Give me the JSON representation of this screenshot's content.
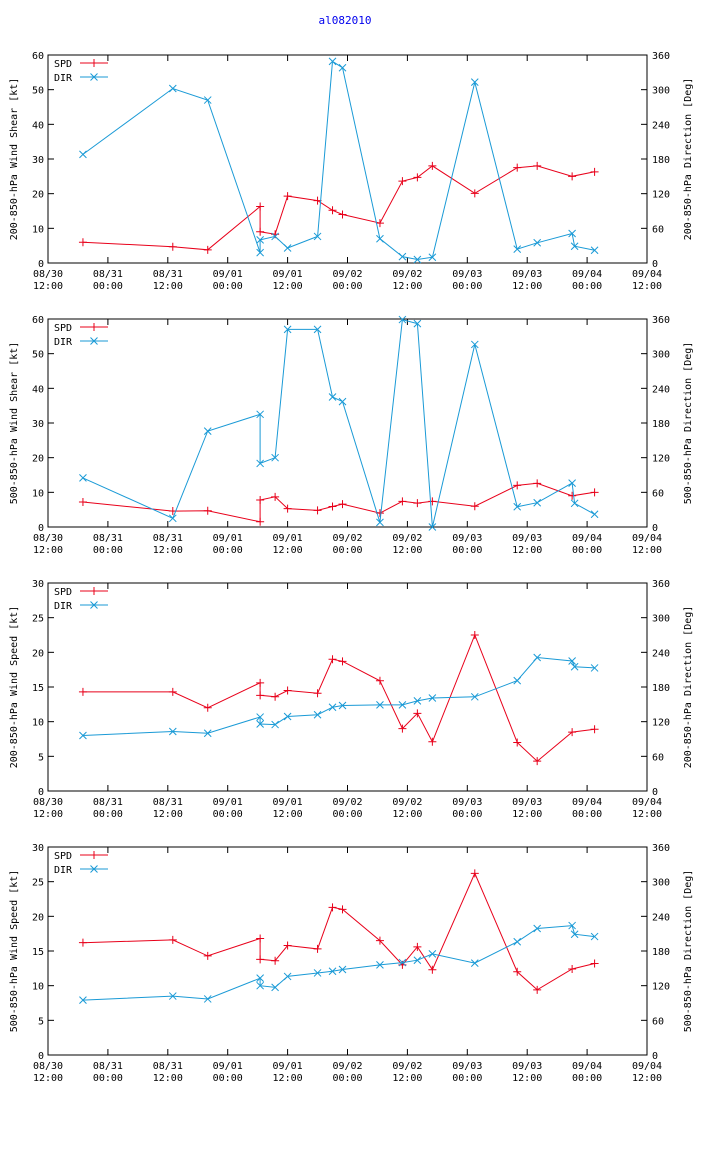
{
  "title": "al082010",
  "colors": {
    "spd": "#e8001a",
    "dir": "#1a9ad6",
    "title": "#0000ee",
    "axis": "#000000"
  },
  "x_ticks": [
    {
      "t": 0,
      "date": "08/30",
      "time": "12:00"
    },
    {
      "t": 12,
      "date": "08/31",
      "time": "00:00"
    },
    {
      "t": 24,
      "date": "08/31",
      "time": "12:00"
    },
    {
      "t": 36,
      "date": "09/01",
      "time": "00:00"
    },
    {
      "t": 48,
      "date": "09/01",
      "time": "12:00"
    },
    {
      "t": 60,
      "date": "09/02",
      "time": "00:00"
    },
    {
      "t": 72,
      "date": "09/02",
      "time": "12:00"
    },
    {
      "t": 84,
      "date": "09/03",
      "time": "00:00"
    },
    {
      "t": 96,
      "date": "09/03",
      "time": "12:00"
    },
    {
      "t": 108,
      "date": "09/04",
      "time": "00:00"
    },
    {
      "t": 120,
      "date": "09/04",
      "time": "12:00"
    }
  ],
  "chart_data": [
    {
      "type": "line",
      "ylabel": "200-850-hPa Wind Shear [kt]",
      "y2label": "200-850-hPa Direction [Deg]",
      "xlim": [
        0,
        120
      ],
      "ylim": [
        0,
        60
      ],
      "yticks": [
        0,
        10,
        20,
        30,
        40,
        50,
        60
      ],
      "y2lim": [
        0,
        360
      ],
      "y2ticks": [
        0,
        60,
        120,
        180,
        240,
        300,
        360
      ],
      "series": [
        {
          "name": "SPD",
          "axis": "left",
          "x": [
            7,
            25,
            32,
            42.5,
            42.5,
            45.5,
            48,
            54,
            57,
            59,
            66.5,
            71,
            74,
            77,
            85.5,
            94,
            98,
            105,
            109.5
          ],
          "values": [
            6,
            4.7,
            3.8,
            16.3,
            9,
            8.3,
            19.3,
            18,
            15.2,
            14,
            11.5,
            23.6,
            24.7,
            28,
            20.1,
            27.5,
            28,
            25,
            26.3
          ]
        },
        {
          "name": "DIR",
          "axis": "right",
          "x": [
            7,
            25,
            32,
            42.5,
            42.5,
            45.5,
            48,
            54,
            57,
            59,
            66.5,
            71,
            74,
            77,
            85.5,
            94,
            98,
            105,
            105.5,
            109.5
          ],
          "values": [
            188,
            302,
            282,
            18,
            40,
            46,
            26,
            46,
            349,
            338,
            42,
            11,
            6,
            10,
            313,
            24,
            35,
            51,
            29,
            22
          ]
        }
      ]
    },
    {
      "type": "line",
      "ylabel": "500-850-hPa Wind Shear [kt]",
      "y2label": "500-850-hPa Direction [Deg]",
      "xlim": [
        0,
        120
      ],
      "ylim": [
        0,
        60
      ],
      "yticks": [
        0,
        10,
        20,
        30,
        40,
        50,
        60
      ],
      "y2lim": [
        0,
        360
      ],
      "y2ticks": [
        0,
        60,
        120,
        180,
        240,
        300,
        360
      ],
      "series": [
        {
          "name": "SPD",
          "axis": "left",
          "x": [
            7,
            25,
            32,
            42.5,
            42.5,
            45.5,
            48,
            54,
            57,
            59,
            66.5,
            71,
            74,
            77,
            85.5,
            94,
            98,
            105,
            109.5
          ],
          "values": [
            7.2,
            4.6,
            4.7,
            1.5,
            7.8,
            8.7,
            5.3,
            4.8,
            5.9,
            6.6,
            4,
            7.4,
            6.9,
            7.4,
            6,
            12,
            12.6,
            9,
            10
          ]
        },
        {
          "name": "DIR",
          "axis": "right",
          "x": [
            7,
            25,
            32,
            42.5,
            42.5,
            45.5,
            48,
            54,
            57,
            59,
            66.5,
            71,
            74,
            77,
            85.5,
            94,
            98,
            105,
            105.5,
            109.5
          ],
          "values": [
            85,
            15,
            166,
            195,
            110,
            120,
            342,
            342,
            225,
            217,
            8,
            359,
            352,
            0,
            316,
            35,
            42,
            76,
            41,
            22
          ]
        }
      ]
    },
    {
      "type": "line",
      "ylabel": "200-850-hPa Wind Speed [kt]",
      "y2label": "200-850-hPa Direction [Deg]",
      "xlim": [
        0,
        120
      ],
      "ylim": [
        0,
        30
      ],
      "yticks": [
        0,
        5,
        10,
        15,
        20,
        25,
        30
      ],
      "y2lim": [
        0,
        360
      ],
      "y2ticks": [
        0,
        60,
        120,
        180,
        240,
        300,
        360
      ],
      "series": [
        {
          "name": "SPD",
          "axis": "left",
          "x": [
            7,
            25,
            32,
            42.5,
            42.5,
            45.5,
            48,
            54,
            57,
            59,
            66.5,
            71,
            74,
            77,
            85.5,
            94,
            98,
            105,
            109.5
          ],
          "values": [
            14.3,
            14.3,
            12,
            15.6,
            13.8,
            13.6,
            14.5,
            14.1,
            19,
            18.7,
            15.9,
            9,
            11.2,
            7.1,
            22.5,
            7,
            4.3,
            8.5,
            8.9
          ]
        },
        {
          "name": "DIR",
          "axis": "right",
          "x": [
            7,
            25,
            32,
            42.5,
            42.5,
            45.5,
            48,
            54,
            57,
            59,
            66.5,
            71,
            74,
            77,
            85.5,
            94,
            98,
            105,
            105.5,
            109.5
          ],
          "values": [
            96,
            103,
            100,
            128,
            116,
            115,
            129,
            132,
            145,
            148,
            149,
            149,
            156,
            161,
            163,
            191,
            231,
            225,
            215,
            213
          ]
        }
      ]
    },
    {
      "type": "line",
      "ylabel": "500-850-hPa Wind Speed [kt]",
      "y2label": "500-850-hPa Direction [Deg]",
      "xlim": [
        0,
        120
      ],
      "ylim": [
        0,
        30
      ],
      "yticks": [
        0,
        5,
        10,
        15,
        20,
        25,
        30
      ],
      "y2lim": [
        0,
        360
      ],
      "y2ticks": [
        0,
        60,
        120,
        180,
        240,
        300,
        360
      ],
      "series": [
        {
          "name": "SPD",
          "axis": "left",
          "x": [
            7,
            25,
            32,
            42.5,
            42.5,
            45.5,
            48,
            54,
            57,
            59,
            66.5,
            71,
            74,
            77,
            85.5,
            94,
            98,
            105,
            109.5
          ],
          "values": [
            16.2,
            16.6,
            14.3,
            16.8,
            13.8,
            13.6,
            15.8,
            15.3,
            21.3,
            21,
            16.5,
            13,
            15.6,
            12.3,
            26.2,
            12,
            9.4,
            12.4,
            13.2
          ]
        },
        {
          "name": "DIR",
          "axis": "right",
          "x": [
            7,
            25,
            32,
            42.5,
            42.5,
            45.5,
            48,
            54,
            57,
            59,
            66.5,
            71,
            74,
            77,
            85.5,
            94,
            98,
            105,
            105.5,
            109.5
          ],
          "values": [
            95,
            102,
            97,
            133,
            120,
            117,
            136,
            142,
            145,
            148,
            156,
            160,
            164,
            175,
            159,
            196,
            219,
            224,
            209,
            205
          ]
        }
      ]
    }
  ]
}
